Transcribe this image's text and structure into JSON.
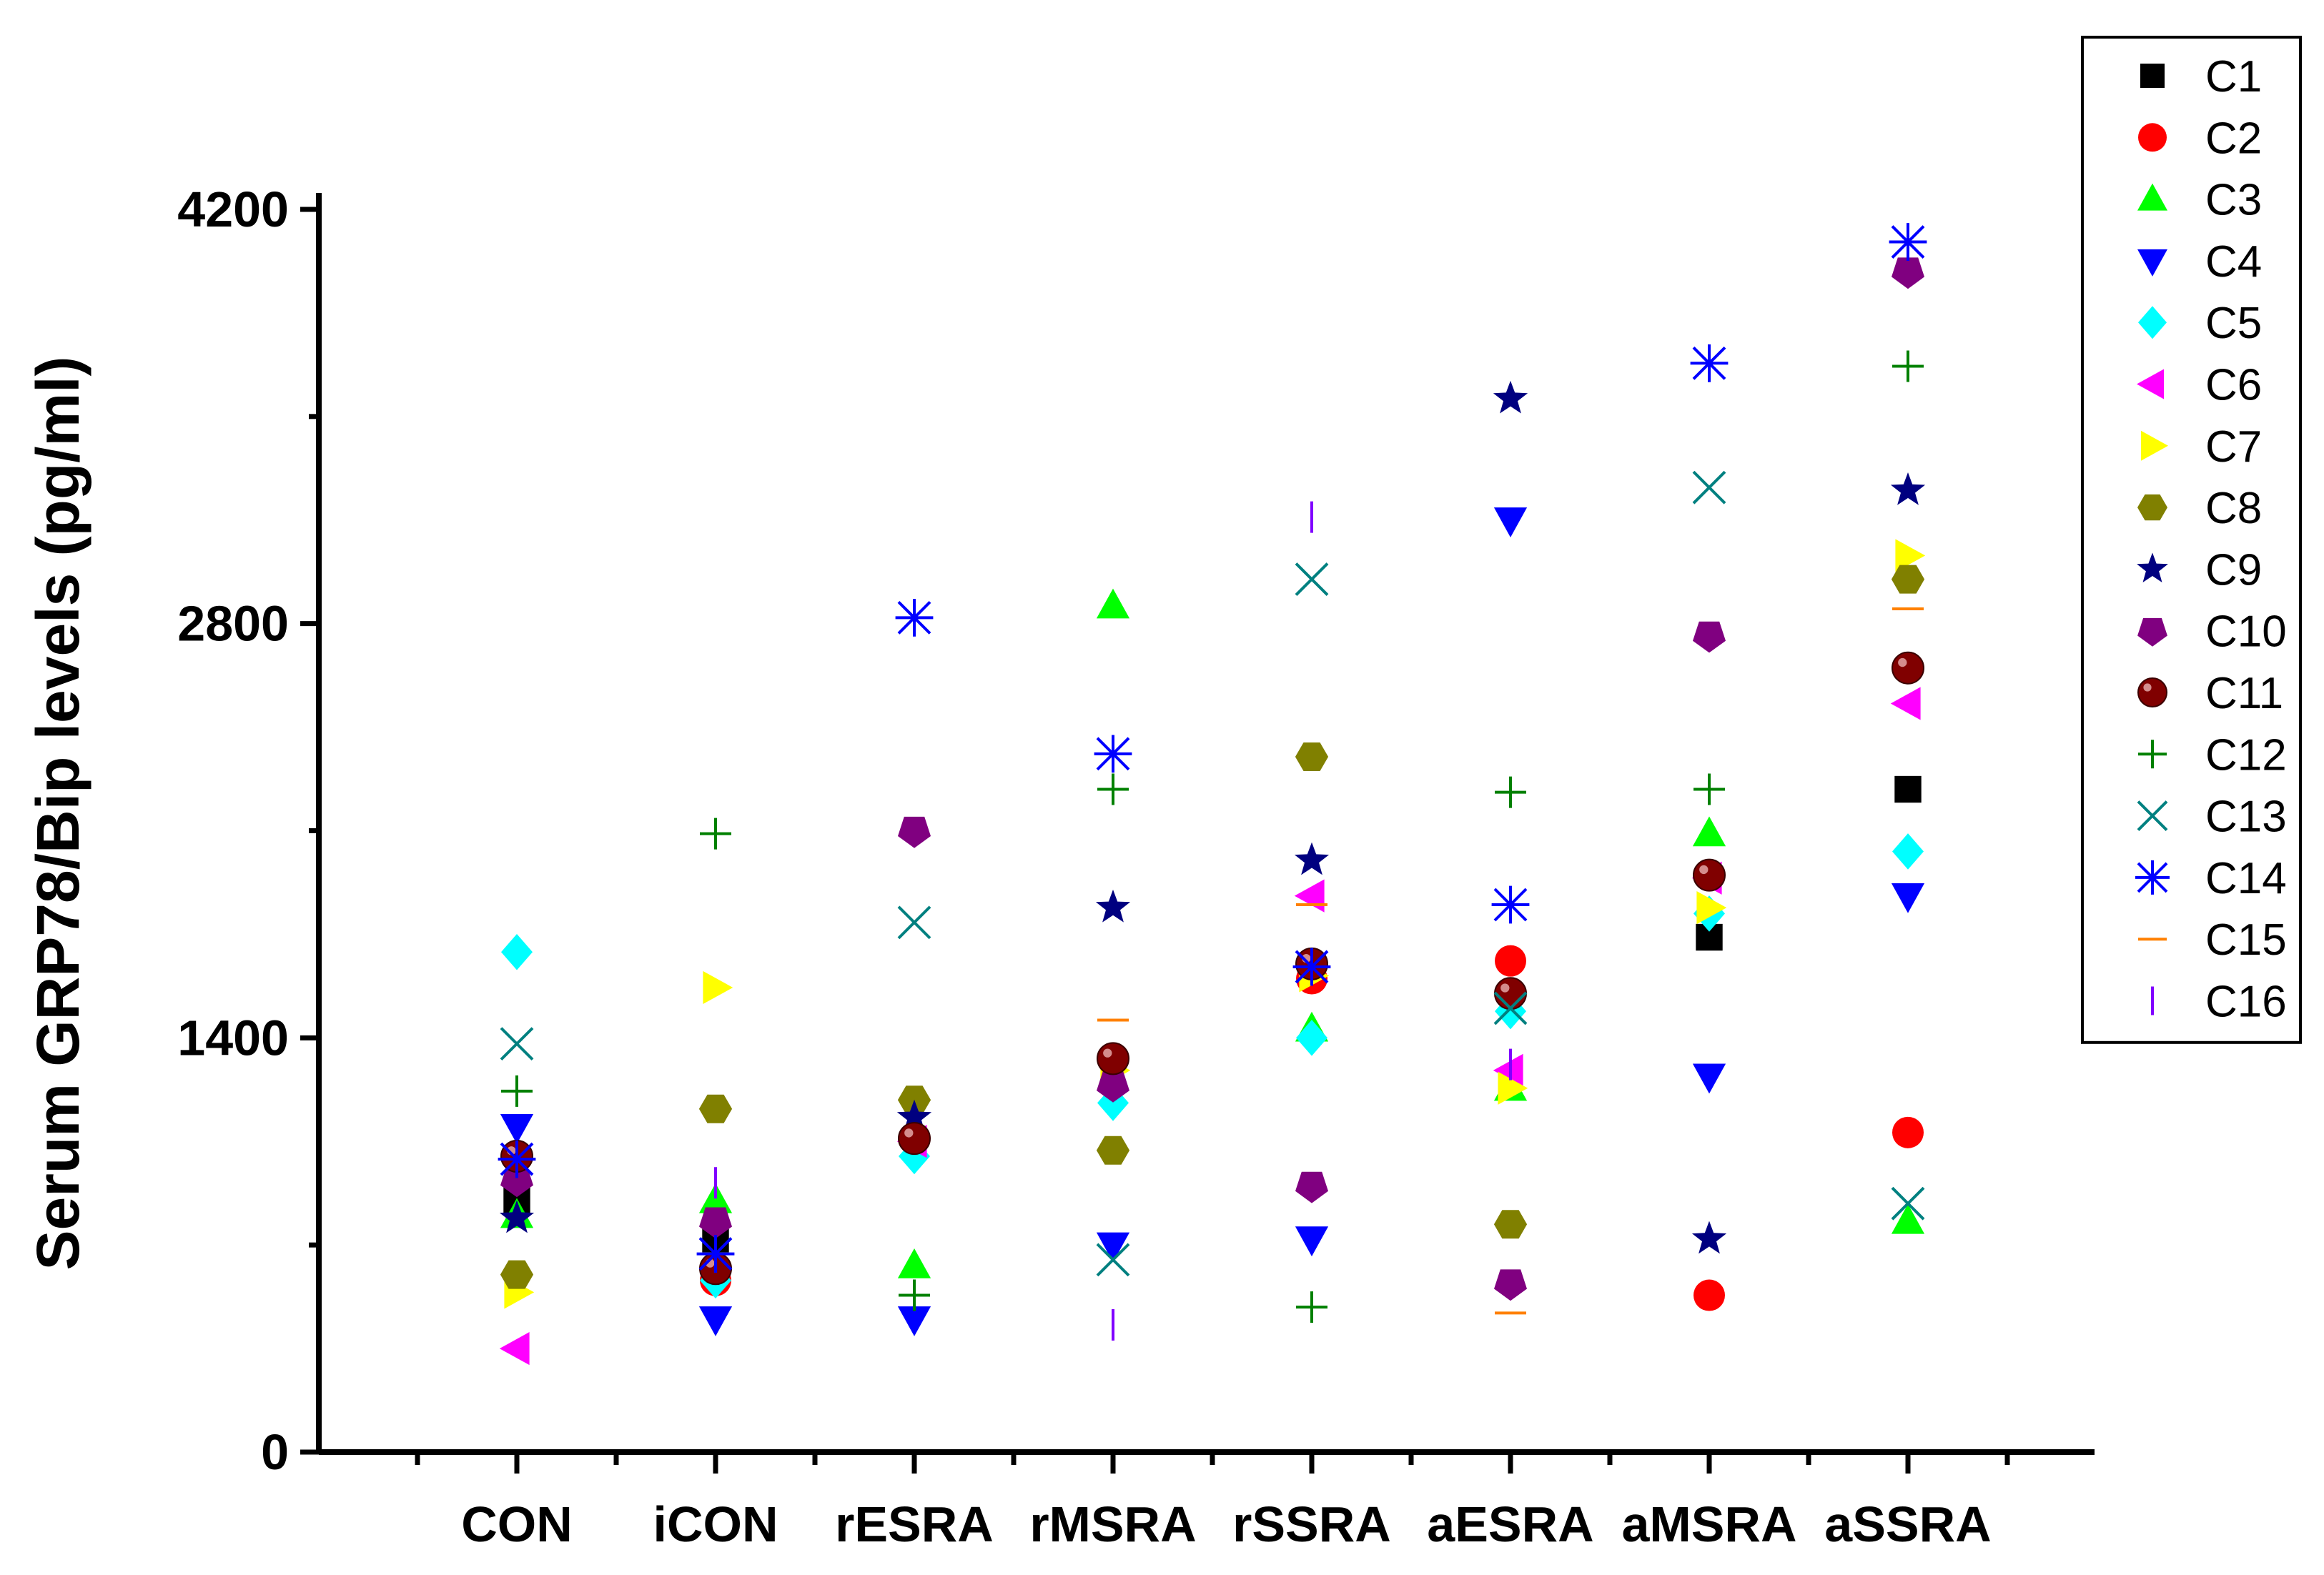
{
  "chart_data": {
    "type": "scatter",
    "title": "",
    "xlabel": "",
    "ylabel": "Serum GRP78/Bip levels (pg/ml)",
    "ylim": [
      0,
      4200
    ],
    "yticks": [
      0,
      1400,
      2800,
      4200
    ],
    "y_tick_labels": [
      "0",
      "1400",
      "2800",
      "4200"
    ],
    "categories": [
      "CON",
      "iCON",
      "rESRA",
      "rMSRA",
      "rSSRA",
      "aESRA",
      "aMSRA",
      "aSSRA"
    ],
    "grid": false,
    "legend": "right",
    "series": [
      {
        "name": "C1",
        "marker": "square",
        "color": "#000000",
        "values": [
          850,
          720,
          null,
          null,
          null,
          null,
          1740,
          2240
        ]
      },
      {
        "name": "C2",
        "marker": "circle",
        "color": "#ff0000",
        "values": [
          1000,
          580,
          null,
          null,
          1600,
          1660,
          530,
          1080
        ]
      },
      {
        "name": "C3",
        "marker": "triangle-up",
        "color": "#00ff00",
        "values": [
          800,
          850,
          630,
          2860,
          1430,
          1230,
          2090,
          780
        ]
      },
      {
        "name": "C4",
        "marker": "triangle-down",
        "color": "#0000ff",
        "values": [
          1100,
          450,
          450,
          700,
          720,
          3150,
          1270,
          1880
        ]
      },
      {
        "name": "C5",
        "marker": "diamond",
        "color": "#00ffff",
        "values": [
          1690,
          580,
          1000,
          1180,
          1400,
          1490,
          1820,
          2030
        ]
      },
      {
        "name": "C6",
        "marker": "triangle-left",
        "color": "#ff00ff",
        "values": [
          350,
          null,
          1050,
          null,
          1880,
          1290,
          1940,
          2530
        ]
      },
      {
        "name": "C7",
        "marker": "triangle-right",
        "color": "#ffff00",
        "values": [
          540,
          1570,
          null,
          1290,
          1610,
          1230,
          1840,
          3030
        ]
      },
      {
        "name": "C8",
        "marker": "hexagon",
        "color": "#808000",
        "values": [
          600,
          1160,
          1190,
          1020,
          2350,
          770,
          null,
          2950
        ]
      },
      {
        "name": "C9",
        "marker": "star",
        "color": "#000080",
        "values": [
          790,
          null,
          1130,
          1840,
          2000,
          3560,
          720,
          3250
        ]
      },
      {
        "name": "C10",
        "marker": "pentagon",
        "color": "#800080",
        "values": [
          920,
          780,
          2100,
          1240,
          900,
          570,
          2760,
          3990
        ]
      },
      {
        "name": "C11",
        "marker": "sphere",
        "color": "#800000",
        "values": [
          1000,
          620,
          1060,
          1330,
          1650,
          1550,
          1950,
          2650
        ]
      },
      {
        "name": "C12",
        "marker": "plus",
        "color": "#008000",
        "values": [
          1220,
          2090,
          530,
          2240,
          490,
          2230,
          2240,
          3670
        ]
      },
      {
        "name": "C13",
        "marker": "x",
        "color": "#008080",
        "values": [
          1380,
          null,
          1790,
          650,
          2950,
          1500,
          3260,
          840
        ]
      },
      {
        "name": "C14",
        "marker": "asterisk",
        "color": "#0000ff",
        "values": [
          990,
          670,
          2820,
          2360,
          1640,
          1850,
          3680,
          4090
        ]
      },
      {
        "name": "C15",
        "marker": "hbar",
        "color": "#ff8000",
        "values": [
          null,
          null,
          null,
          1460,
          1850,
          470,
          null,
          2850
        ]
      },
      {
        "name": "C16",
        "marker": "vbar",
        "color": "#8000ff",
        "values": [
          null,
          910,
          null,
          430,
          3160,
          1310,
          null,
          null
        ]
      }
    ]
  }
}
